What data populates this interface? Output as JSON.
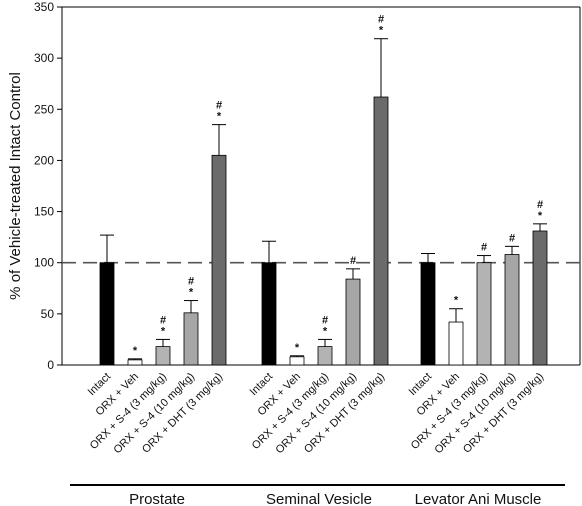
{
  "chart_data": {
    "type": "bar",
    "ylabel": "% of Vehicle-treated Intact Control",
    "ylim": [
      0,
      350
    ],
    "yticks": [
      0,
      50,
      100,
      150,
      200,
      250,
      300,
      350
    ],
    "reference_line": 100,
    "grid": false,
    "categories": [
      "Intact",
      "ORX + Veh",
      "ORX + S-4 (3 mg/kg)",
      "ORX + S-4 (10 mg/kg)",
      "ORX + DHT (3 mg/kg)"
    ],
    "category_colors": [
      "#000000",
      "#ffffff",
      "#b3b3b3",
      "#a6a6a6",
      "#6b6b6b"
    ],
    "groups": [
      {
        "name": "Prostate",
        "values": [
          100,
          5,
          18,
          51,
          205
        ],
        "errors": [
          27,
          1,
          7,
          12,
          30
        ],
        "annotations": [
          "",
          "*",
          "#\n*",
          "#\n*",
          "#\n*"
        ]
      },
      {
        "name": "Seminal Vesicle",
        "values": [
          100,
          8,
          18,
          84,
          262
        ],
        "errors": [
          21,
          1,
          7,
          10,
          57
        ],
        "annotations": [
          "",
          "*",
          "#\n*",
          "#",
          "#\n*"
        ]
      },
      {
        "name": "Levator Ani Muscle",
        "values": [
          100,
          42,
          100,
          108,
          131
        ],
        "errors": [
          9,
          13,
          7,
          8,
          7
        ],
        "annotations": [
          "",
          "*",
          "#",
          "#",
          "#\n*"
        ]
      }
    ]
  }
}
